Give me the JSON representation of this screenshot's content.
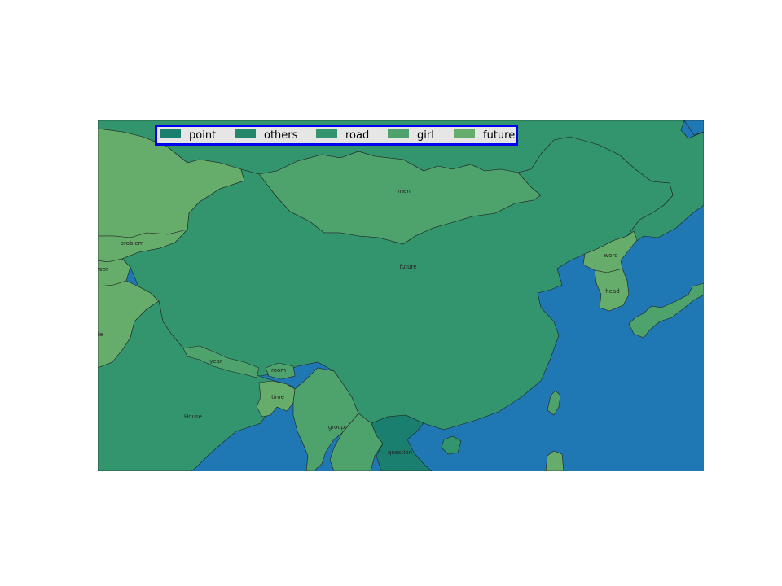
{
  "map": {
    "colors": {
      "ocean": "#1f77b4",
      "point": "#1a7f6e",
      "others": "#24876c",
      "road": "#33956e",
      "girl": "#4ea36d",
      "future": "#66ad6c",
      "legend_border": "#0000ee",
      "legend_bg": "#e6e6e6"
    },
    "legend": [
      {
        "label": "point",
        "color": "#1a7f6e"
      },
      {
        "label": "others",
        "color": "#24876c"
      },
      {
        "label": "road",
        "color": "#33956e"
      },
      {
        "label": "girl",
        "color": "#4ea36d"
      },
      {
        "label": "future",
        "color": "#66ad6c"
      }
    ],
    "labels": {
      "men": "men",
      "future": "future",
      "word": "word",
      "head": "head",
      "problem": "problem",
      "wor": "wor",
      "le": "le",
      "year": "year",
      "room": "room",
      "time": "time",
      "group": "group",
      "house": "House",
      "question": "question"
    }
  }
}
